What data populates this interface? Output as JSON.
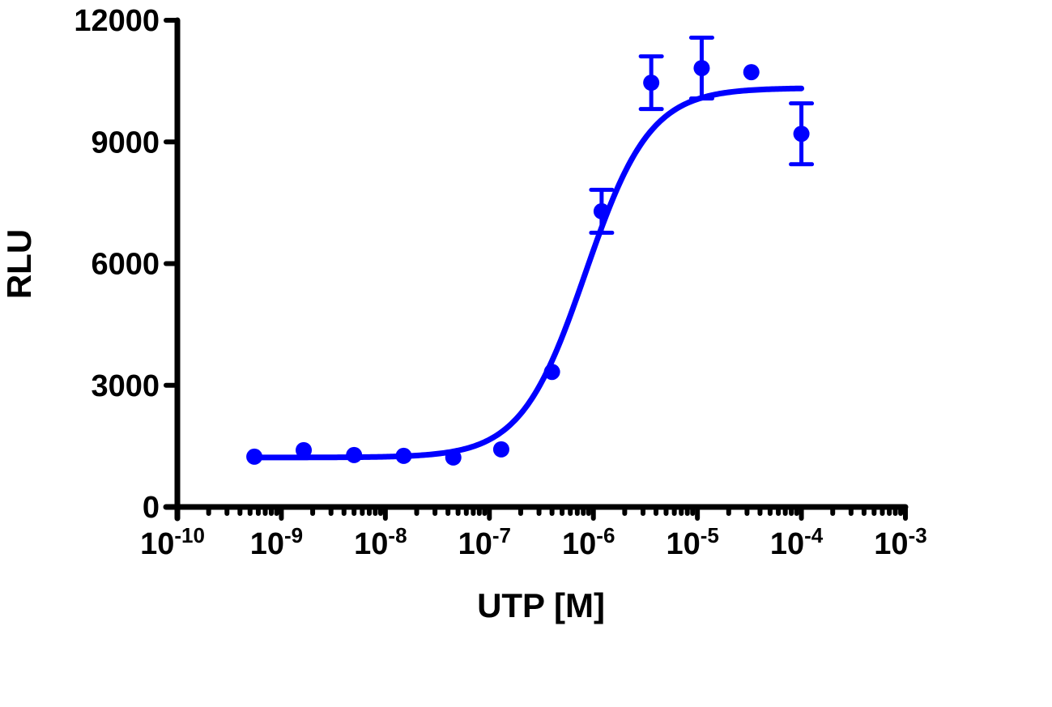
{
  "chart_data": {
    "type": "scatter",
    "title": "",
    "xlabel": "UTP [M]",
    "ylabel": "RLU",
    "xscale": "log",
    "xlim": [
      1e-10,
      0.001
    ],
    "ylim": [
      0,
      12000
    ],
    "grid": false,
    "legend": null,
    "x_tick_labels": [
      {
        "base": "10",
        "exp": "-10",
        "value": 1e-10
      },
      {
        "base": "10",
        "exp": "-9",
        "value": 1e-09
      },
      {
        "base": "10",
        "exp": "-8",
        "value": 1e-08
      },
      {
        "base": "10",
        "exp": "-7",
        "value": 1e-07
      },
      {
        "base": "10",
        "exp": "-6",
        "value": 1e-06
      },
      {
        "base": "10",
        "exp": "-5",
        "value": 1e-05
      },
      {
        "base": "10",
        "exp": "-4",
        "value": 0.0001
      },
      {
        "base": "10",
        "exp": "-3",
        "value": 0.001
      }
    ],
    "y_ticks": [
      0,
      3000,
      6000,
      9000,
      12000
    ],
    "y_tick_labels": [
      "0",
      "3000",
      "6000",
      "9000",
      "12000"
    ],
    "series": [
      {
        "name": "UTP",
        "color": "#0000ff",
        "marker": "circle",
        "points": [
          {
            "x": 5.5e-10,
            "y": 1240,
            "err": null
          },
          {
            "x": 1.64e-09,
            "y": 1400,
            "err": null
          },
          {
            "x": 5e-09,
            "y": 1280,
            "err": null
          },
          {
            "x": 1.5e-08,
            "y": 1260,
            "err": null
          },
          {
            "x": 4.5e-08,
            "y": 1220,
            "err": null
          },
          {
            "x": 1.3e-07,
            "y": 1420,
            "err": null
          },
          {
            "x": 4e-07,
            "y": 3330,
            "err": null
          },
          {
            "x": 1.2e-06,
            "y": 7290,
            "err": 530
          },
          {
            "x": 3.6e-06,
            "y": 10460,
            "err": 650
          },
          {
            "x": 1.1e-05,
            "y": 10820,
            "err": 750
          },
          {
            "x": 3.3e-05,
            "y": 10720,
            "err": null
          },
          {
            "x": 0.0001,
            "y": 9200,
            "err": 750
          }
        ],
        "fit": {
          "model": "sigmoidal dose-response (4PL)",
          "bottom": 1220,
          "top": 10330,
          "ec50": 8.4e-07,
          "hill_slope": 1.4,
          "x_range": [
            5.5e-10,
            0.0001
          ]
        }
      }
    ]
  }
}
